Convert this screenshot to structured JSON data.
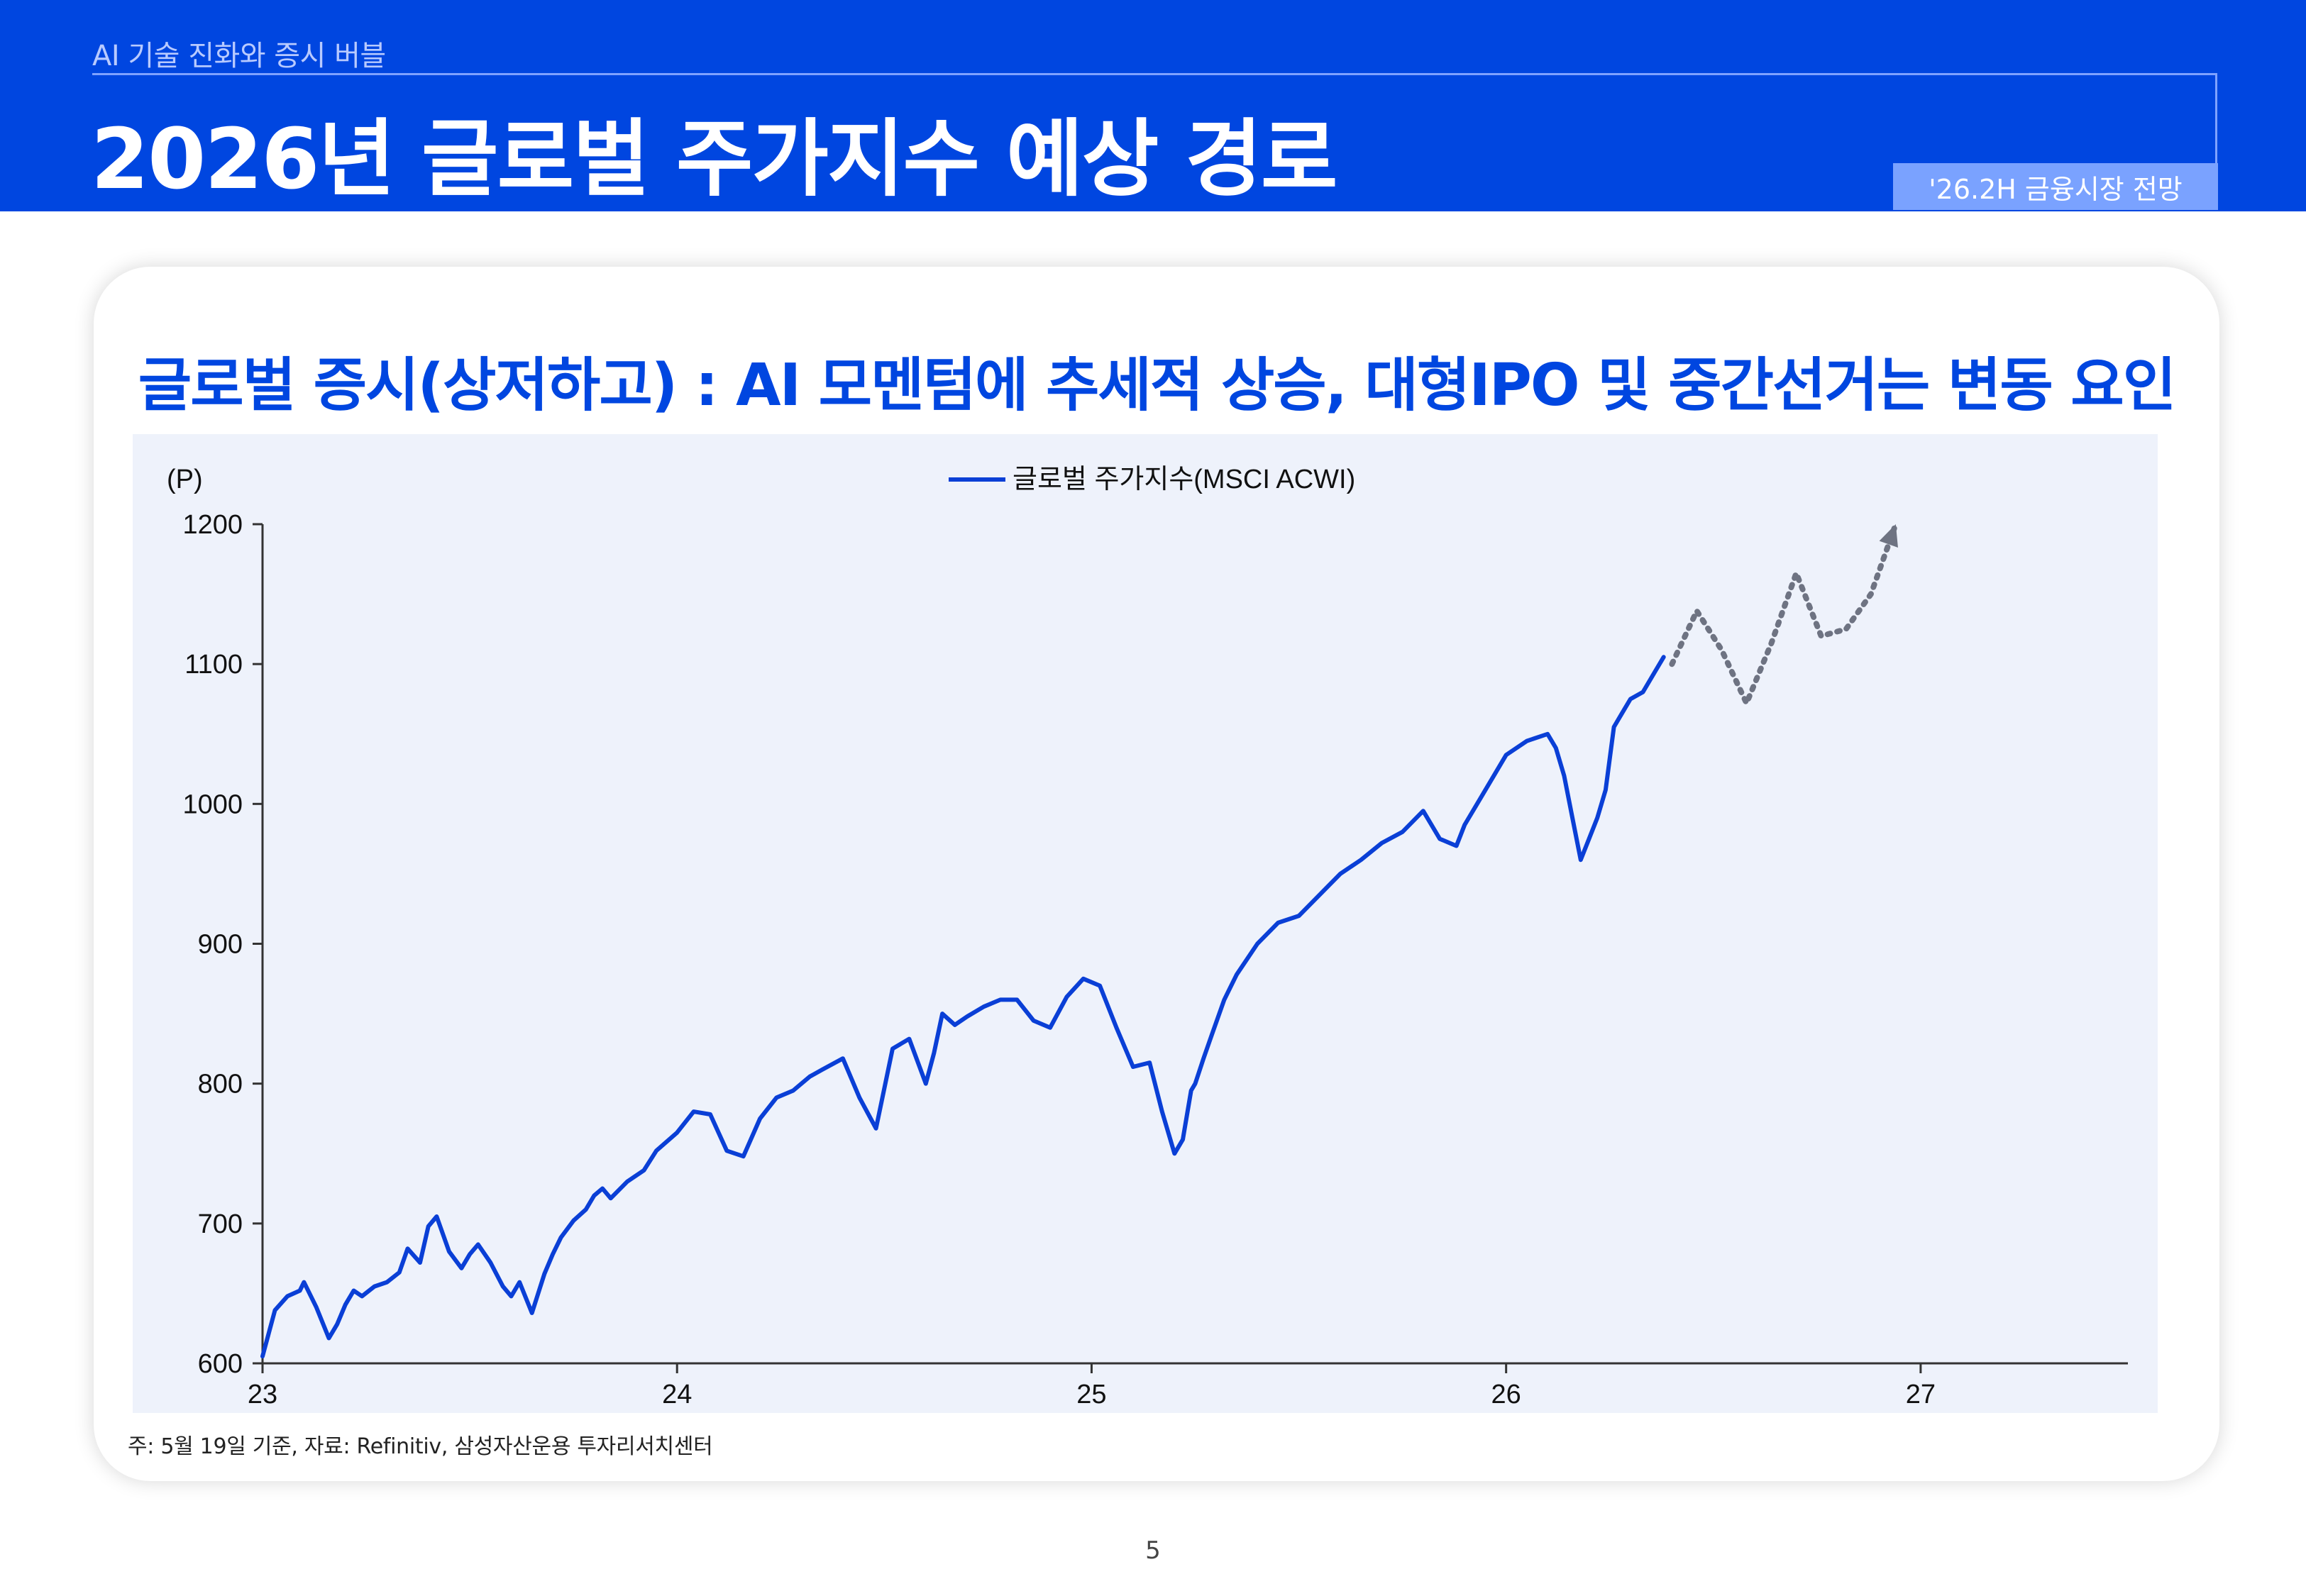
{
  "header": {
    "section_label": "AI 기술 진화와 증시 버블",
    "title": "2026년 글로벌 주가지수 예상 경로",
    "badge": "'26.2H 금융시장 전망"
  },
  "card": {
    "headline": "글로벌 증시(상저하고) : AI 모멘텀에 추세적 상승, 대형IPO 및 중간선거는 변동 요인",
    "source_note": "주: 5월 19일 기준, 자료: Refinitiv, 삼성자산운용 투자리서치센터"
  },
  "page_number": "5",
  "colors": {
    "header_blue": "#0046e0",
    "series_line": "#0a3fd6",
    "forecast_dots": "#6e7382",
    "panel_bg": "#eef2fb"
  },
  "chart_data": {
    "type": "line",
    "title": "",
    "ylabel": "(P)",
    "xlabel": "",
    "ylim": [
      600,
      1200
    ],
    "xlim": [
      23,
      27.5
    ],
    "yticks": [
      600,
      700,
      800,
      900,
      1000,
      1100,
      1200
    ],
    "xticks": [
      23,
      24,
      25,
      26,
      27
    ],
    "xtick_labels": [
      "23",
      "24",
      "25",
      "26",
      "27"
    ],
    "legend": "top-center",
    "grid": false,
    "series": [
      {
        "name": "글로벌 주가지수(MSCI ACWI)",
        "style": "solid",
        "x": [
          23.0,
          23.03,
          23.06,
          23.09,
          23.1,
          23.13,
          23.16,
          23.18,
          23.2,
          23.22,
          23.24,
          23.27,
          23.3,
          23.33,
          23.35,
          23.38,
          23.4,
          23.42,
          23.45,
          23.48,
          23.5,
          23.52,
          23.55,
          23.58,
          23.6,
          23.62,
          23.65,
          23.68,
          23.7,
          23.72,
          23.75,
          23.78,
          23.8,
          23.82,
          23.84,
          23.88,
          23.92,
          23.95,
          24.0,
          24.04,
          24.08,
          24.12,
          24.16,
          24.2,
          24.24,
          24.28,
          24.32,
          24.35,
          24.4,
          24.44,
          24.48,
          24.52,
          24.56,
          24.6,
          24.62,
          24.64,
          24.67,
          24.7,
          24.74,
          24.78,
          24.82,
          24.86,
          24.9,
          24.94,
          24.98,
          25.02,
          25.06,
          25.1,
          25.14,
          25.17,
          25.2,
          25.22,
          25.24,
          25.25,
          25.27,
          25.29,
          25.32,
          25.35,
          25.4,
          25.45,
          25.5,
          25.55,
          25.6,
          25.65,
          25.7,
          25.75,
          25.8,
          25.84,
          25.88,
          25.9,
          25.93,
          25.96,
          26.0,
          26.05,
          26.1,
          26.12,
          26.14,
          26.16,
          26.18,
          26.2,
          26.22,
          26.24,
          26.26,
          26.28,
          26.3,
          26.33,
          26.36,
          26.38
        ],
        "y": [
          605,
          638,
          648,
          652,
          658,
          640,
          618,
          628,
          642,
          652,
          648,
          655,
          658,
          665,
          682,
          672,
          698,
          705,
          680,
          668,
          678,
          685,
          672,
          655,
          648,
          658,
          636,
          664,
          678,
          690,
          702,
          710,
          720,
          725,
          718,
          730,
          738,
          752,
          765,
          780,
          778,
          752,
          748,
          775,
          790,
          795,
          805,
          810,
          818,
          790,
          768,
          825,
          832,
          800,
          822,
          850,
          842,
          848,
          855,
          860,
          860,
          845,
          840,
          862,
          875,
          870,
          840,
          812,
          815,
          780,
          750,
          760,
          795,
          800,
          818,
          835,
          860,
          878,
          900,
          915,
          920,
          935,
          950,
          960,
          972,
          980,
          995,
          975,
          970,
          985,
          1000,
          1015,
          1035,
          1045,
          1050,
          1040,
          1020,
          990,
          960,
          975,
          990,
          1010,
          1055,
          1065,
          1075,
          1080,
          1095,
          1105
        ]
      },
      {
        "name": "",
        "style": "dotted",
        "x": [
          26.4,
          26.46,
          26.52,
          26.58,
          26.64,
          26.7,
          26.76,
          26.82,
          26.88,
          26.94
        ],
        "y": [
          1100,
          1138,
          1110,
          1072,
          1115,
          1165,
          1120,
          1125,
          1150,
          1200
        ]
      }
    ]
  }
}
